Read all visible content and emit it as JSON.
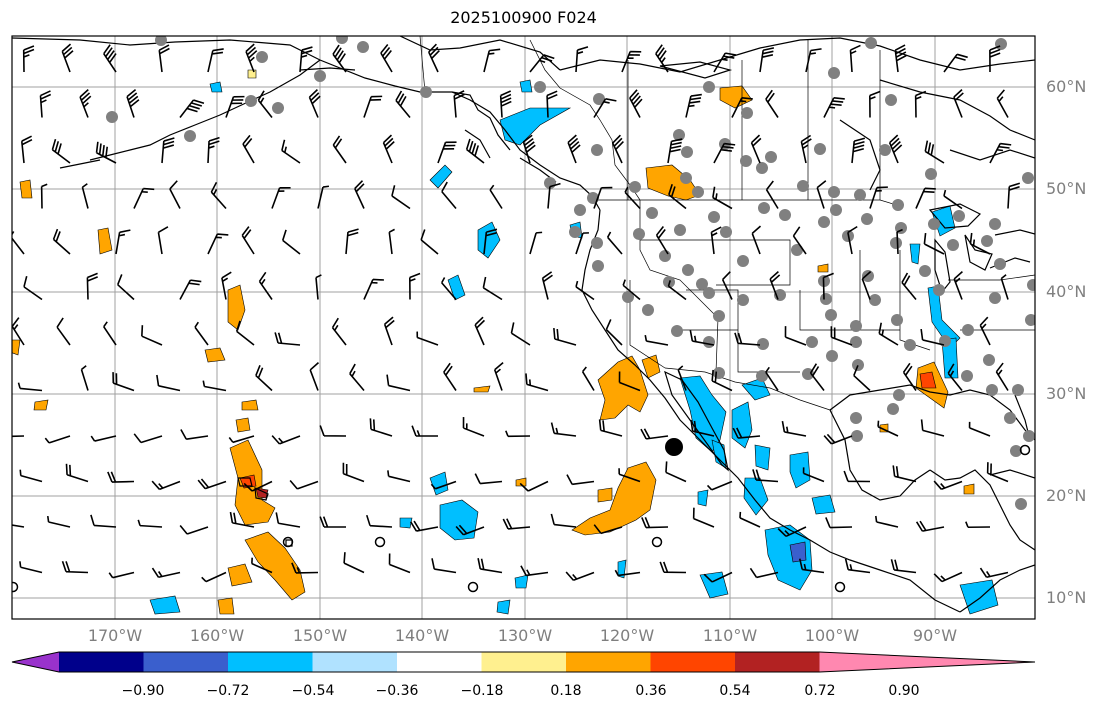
{
  "title": "2025100900 F024",
  "lat_labels": [
    "60°N",
    "50°N",
    "40°N",
    "30°N",
    "20°N",
    "10°N"
  ],
  "lon_labels": [
    "170°W",
    "160°W",
    "150°W",
    "140°W",
    "130°W",
    "120°W",
    "110°W",
    "100°W",
    "90°W"
  ],
  "colorbar": {
    "tick_labels": [
      "−0.90",
      "−0.72",
      "−0.54",
      "−0.36",
      "−0.18",
      "0.18",
      "0.36",
      "0.54",
      "0.72",
      "0.90"
    ],
    "colors": [
      "#9932cc",
      "#00008b",
      "#3a5fcd",
      "#00bfff",
      "#b0e2ff",
      "#ffffff",
      "#fff08f",
      "#ffa500",
      "#ff4500",
      "#b22222",
      "#ff88b0"
    ]
  },
  "colors": {
    "grid": "#a0a0a0",
    "coast": "#000000",
    "station_marker": "#808080",
    "axis_label": "#7f7f7f"
  }
}
